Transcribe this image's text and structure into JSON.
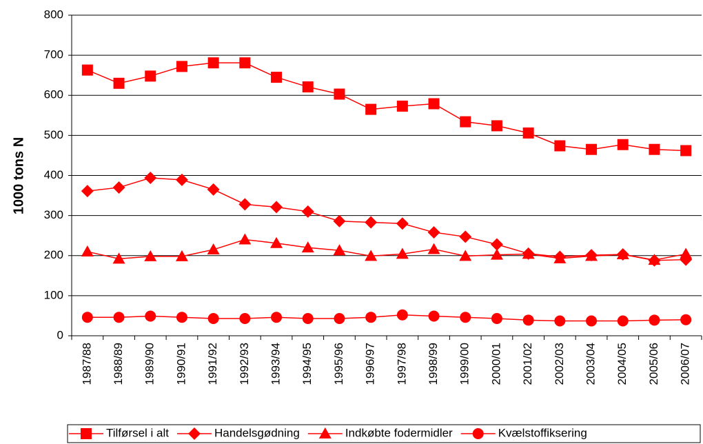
{
  "chart_data": {
    "type": "line",
    "y_label": "1000 tons N",
    "categories": [
      "1987/88",
      "1988/89",
      "1989/90",
      "1990/91",
      "1991/92",
      "1992/93",
      "1993/94",
      "1994/95",
      "1995/96",
      "1996/97",
      "1997/98",
      "1998/99",
      "1999/00",
      "2000/01",
      "2001/02",
      "2002/03",
      "2003/04",
      "2004/05",
      "2005/06",
      "2006/07"
    ],
    "series": [
      {
        "name": "Tilførsel i alt",
        "color": "#ff0000",
        "marker": "square",
        "values": [
          663,
          630,
          648,
          672,
          681,
          681,
          645,
          621,
          603,
          565,
          573,
          579,
          534,
          524,
          506,
          474,
          465,
          477,
          465,
          462
        ]
      },
      {
        "name": "Handelsgødning",
        "color": "#ff0000",
        "marker": "diamond",
        "values": [
          361,
          370,
          394,
          389,
          365,
          328,
          321,
          310,
          286,
          283,
          280,
          258,
          247,
          228,
          205,
          197,
          201,
          203,
          188,
          190
        ]
      },
      {
        "name": "Indkøbte fodermidler",
        "color": "#ff0000",
        "marker": "triangle",
        "values": [
          210,
          192,
          198,
          198,
          215,
          240,
          231,
          220,
          213,
          199,
          204,
          216,
          199,
          202,
          204,
          193,
          199,
          203,
          189,
          204
        ]
      },
      {
        "name": "Kvælstoffiksering",
        "color": "#ff0000",
        "marker": "circle",
        "values": [
          46,
          46,
          49,
          46,
          43,
          43,
          46,
          43,
          43,
          46,
          52,
          49,
          46,
          43,
          39,
          37,
          37,
          37,
          39,
          40
        ]
      }
    ],
    "ylim": [
      0,
      800
    ],
    "yticks": [
      0,
      100,
      200,
      300,
      400,
      500,
      600,
      700,
      800
    ],
    "grid": true,
    "legend": "bottom"
  }
}
